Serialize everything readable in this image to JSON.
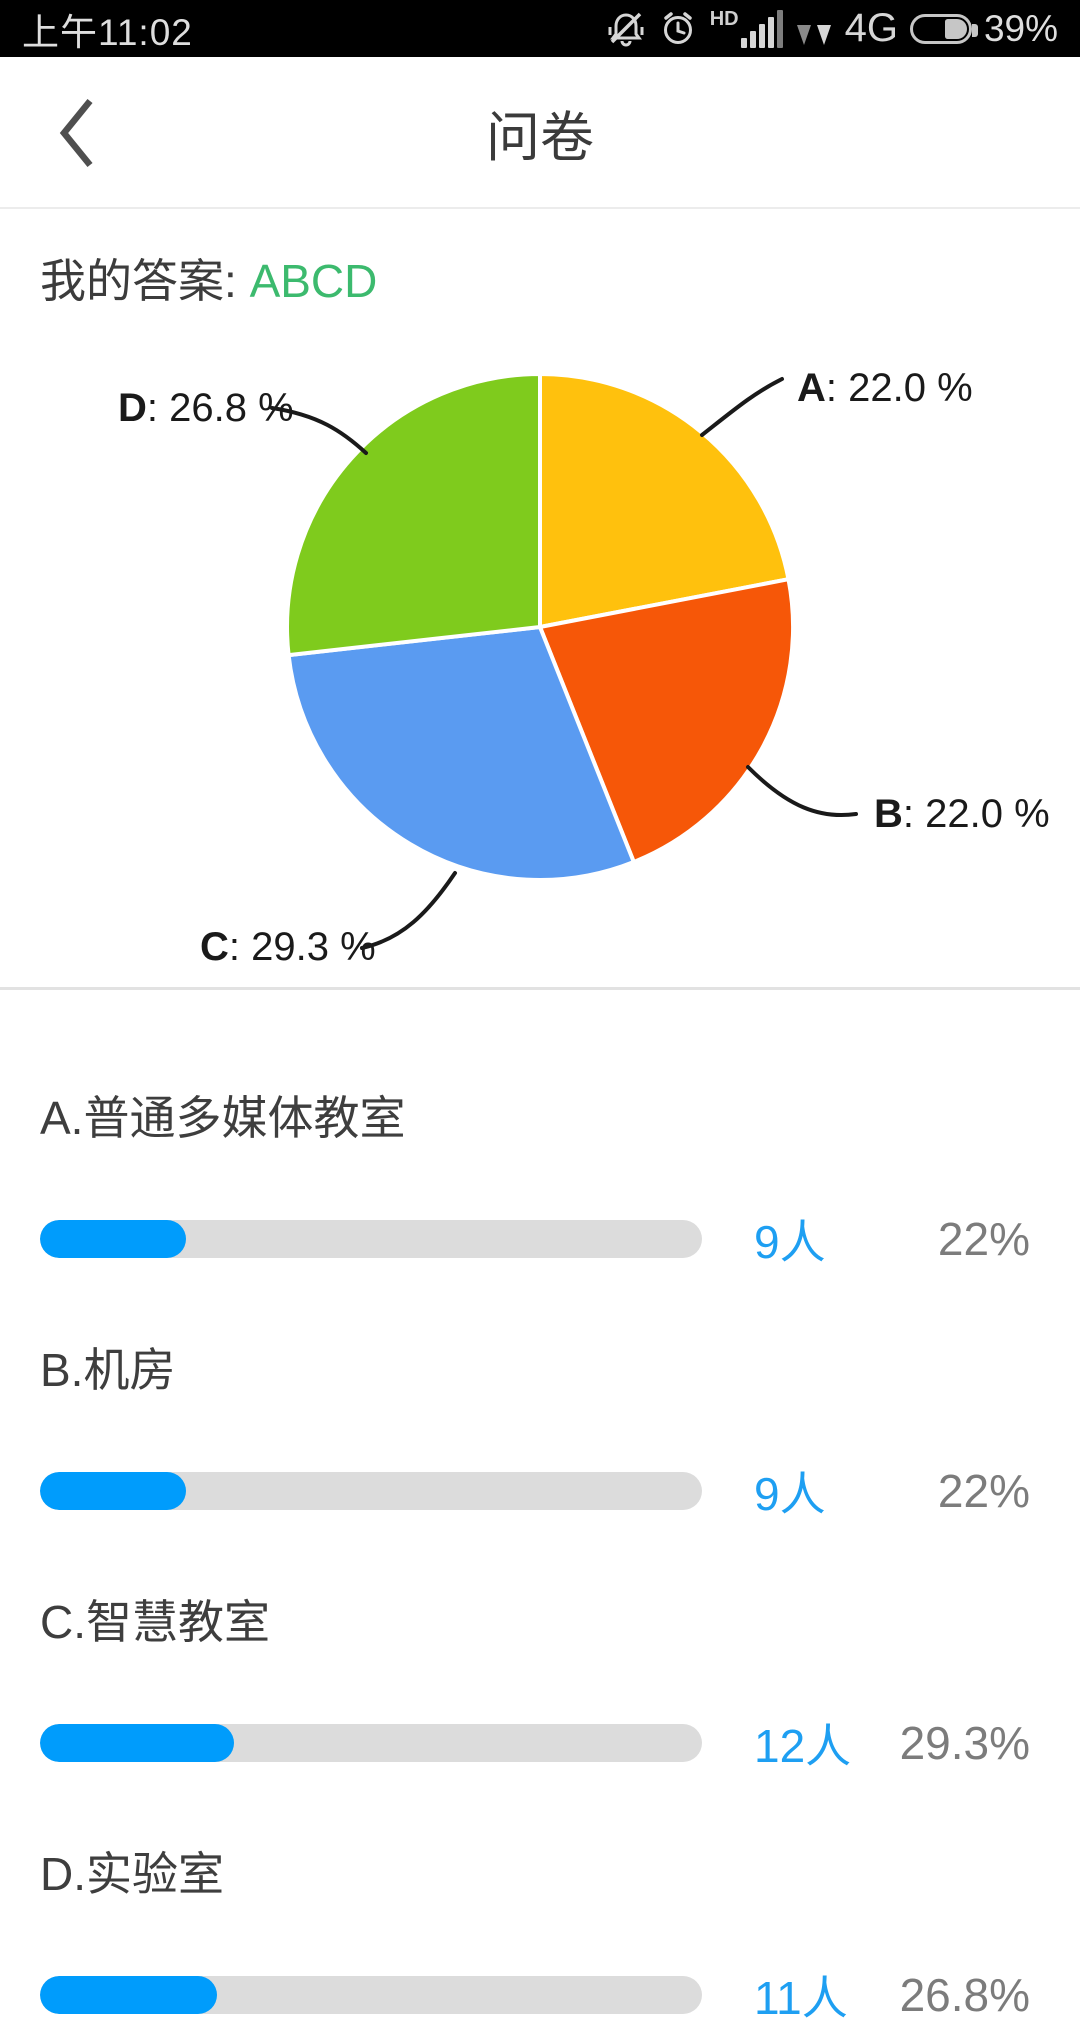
{
  "status_bar": {
    "time": "上午11:02",
    "hd": "HD",
    "network": "4G",
    "battery_percent": "39%",
    "icons": [
      "bell-muted-icon",
      "alarm-clock-icon",
      "signal-bars-icon",
      "network-arrows-icon",
      "battery-icon"
    ]
  },
  "header": {
    "title": "问卷",
    "back_icon": "chevron-left"
  },
  "answer": {
    "label": "我的答案:",
    "value": "ABCD"
  },
  "chart_data": {
    "type": "pie",
    "title": "",
    "start_angle_deg": 0,
    "direction": "clockwise",
    "legend_position": "none",
    "slices": [
      {
        "label": "A",
        "suffix": ": 22.0 %",
        "percent": 22.0,
        "color": "#FFC10D"
      },
      {
        "label": "B",
        "suffix": ": 22.0 %",
        "percent": 22.0,
        "color": "#F65708"
      },
      {
        "label": "C",
        "suffix": ": 29.3 %",
        "percent": 29.3,
        "color": "#5A9BF1"
      },
      {
        "label": "D",
        "suffix": ": 26.8 %",
        "percent": 26.8,
        "color": "#7FCB1D"
      }
    ]
  },
  "options": [
    {
      "title": "A.普通多媒体教室",
      "count": "9人",
      "percent": 22,
      "percent_label": "22%"
    },
    {
      "title": "B.机房",
      "count": "9人",
      "percent": 22,
      "percent_label": "22%"
    },
    {
      "title": "C.智慧教室",
      "count": "12人",
      "percent": 29.3,
      "percent_label": "29.3%"
    },
    {
      "title": "D.实验室",
      "count": "11人",
      "percent": 26.8,
      "percent_label": "26.8%"
    }
  ],
  "colors": {
    "accent_blue_fill": "#009cfc",
    "count_blue": "#1e9ff2",
    "answer_green": "#3cba6e",
    "track_gray": "#dcdcdc",
    "percent_gray": "#7c7c7c"
  }
}
